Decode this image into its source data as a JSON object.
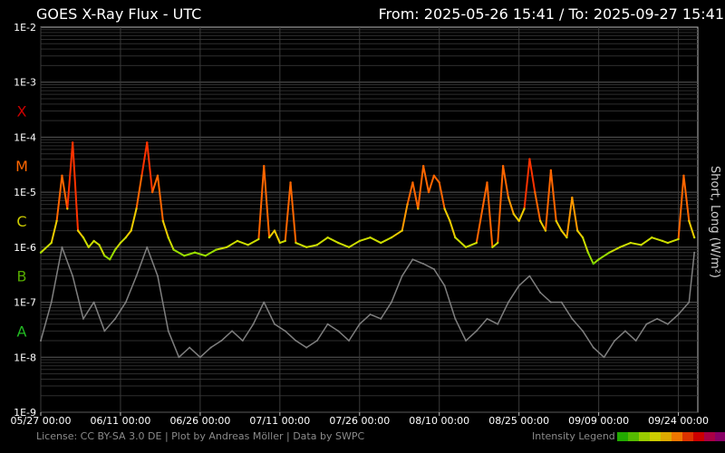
{
  "chart_data": {
    "type": "line",
    "title": "GOES X-Ray Flux - UTC",
    "range_label": "From: 2025-05-26 15:41  /  To: 2025-09-27 15:41",
    "ylabel": "Short, Long (W/m²)",
    "yscale": "log",
    "ylim": [
      1e-09,
      0.01
    ],
    "xlim": [
      "2025-05-27T00:00",
      "2025-09-27T15:41"
    ],
    "y_ticks": [
      "1E-2",
      "1E-3",
      "1E-4",
      "1E-5",
      "1E-6",
      "1E-7",
      "1E-8",
      "1E-9"
    ],
    "x_ticks": [
      {
        "date": "2025-05-27",
        "label": "05/27 00:00"
      },
      {
        "date": "2025-06-11",
        "label": "06/11 00:00"
      },
      {
        "date": "2025-06-26",
        "label": "06/26 00:00"
      },
      {
        "date": "2025-07-11",
        "label": "07/11 00:00"
      },
      {
        "date": "2025-07-26",
        "label": "07/26 00:00"
      },
      {
        "date": "2025-08-10",
        "label": "08/10 00:00"
      },
      {
        "date": "2025-08-25",
        "label": "08/25 00:00"
      },
      {
        "date": "2025-09-09",
        "label": "09/09 00:00"
      },
      {
        "date": "2025-09-24",
        "label": "09/24 00:00"
      }
    ],
    "flare_classes": [
      {
        "label": "X",
        "color": "#cc0000",
        "value": 0.0003
      },
      {
        "label": "M",
        "color": "#ff6600",
        "value": 3e-05
      },
      {
        "label": "C",
        "color": "#cccc00",
        "value": 3e-06
      },
      {
        "label": "B",
        "color": "#55aa00",
        "value": 3e-07
      },
      {
        "label": "A",
        "color": "#22bb22",
        "value": 3e-08
      }
    ],
    "grid": true,
    "series": [
      {
        "name": "Long",
        "color_scale": "intensity",
        "points": [
          [
            "2025-05-27",
            8e-07
          ],
          [
            "2025-05-29",
            1.2e-06
          ],
          [
            "2025-05-30",
            3e-06
          ],
          [
            "2025-05-31",
            2e-05
          ],
          [
            "2025-06-01",
            5e-06
          ],
          [
            "2025-06-02",
            8e-05
          ],
          [
            "2025-06-03",
            2e-06
          ],
          [
            "2025-06-04",
            1.5e-06
          ],
          [
            "2025-06-05",
            1e-06
          ],
          [
            "2025-06-06",
            1.3e-06
          ],
          [
            "2025-06-07",
            1.1e-06
          ],
          [
            "2025-06-08",
            7e-07
          ],
          [
            "2025-06-09",
            6e-07
          ],
          [
            "2025-06-10",
            9e-07
          ],
          [
            "2025-06-11",
            1.2e-06
          ],
          [
            "2025-06-12",
            1.5e-06
          ],
          [
            "2025-06-13",
            2e-06
          ],
          [
            "2025-06-14",
            5e-06
          ],
          [
            "2025-06-15",
            2e-05
          ],
          [
            "2025-06-16",
            8e-05
          ],
          [
            "2025-06-17",
            1e-05
          ],
          [
            "2025-06-18",
            2e-05
          ],
          [
            "2025-06-19",
            3e-06
          ],
          [
            "2025-06-20",
            1.5e-06
          ],
          [
            "2025-06-21",
            9e-07
          ],
          [
            "2025-06-23",
            7e-07
          ],
          [
            "2025-06-25",
            8e-07
          ],
          [
            "2025-06-27",
            7e-07
          ],
          [
            "2025-06-29",
            9e-07
          ],
          [
            "2025-07-01",
            1e-06
          ],
          [
            "2025-07-03",
            1.3e-06
          ],
          [
            "2025-07-05",
            1.1e-06
          ],
          [
            "2025-07-07",
            1.4e-06
          ],
          [
            "2025-07-08",
            3e-05
          ],
          [
            "2025-07-09",
            1.5e-06
          ],
          [
            "2025-07-10",
            2e-06
          ],
          [
            "2025-07-11",
            1.2e-06
          ],
          [
            "2025-07-12",
            1.3e-06
          ],
          [
            "2025-07-13",
            1.5e-05
          ],
          [
            "2025-07-14",
            1.2e-06
          ],
          [
            "2025-07-16",
            1e-06
          ],
          [
            "2025-07-18",
            1.1e-06
          ],
          [
            "2025-07-20",
            1.5e-06
          ],
          [
            "2025-07-22",
            1.2e-06
          ],
          [
            "2025-07-24",
            1e-06
          ],
          [
            "2025-07-26",
            1.3e-06
          ],
          [
            "2025-07-28",
            1.5e-06
          ],
          [
            "2025-07-30",
            1.2e-06
          ],
          [
            "2025-08-01",
            1.5e-06
          ],
          [
            "2025-08-03",
            2e-06
          ],
          [
            "2025-08-04",
            6e-06
          ],
          [
            "2025-08-05",
            1.5e-05
          ],
          [
            "2025-08-06",
            5e-06
          ],
          [
            "2025-08-07",
            3e-05
          ],
          [
            "2025-08-08",
            1e-05
          ],
          [
            "2025-08-09",
            2e-05
          ],
          [
            "2025-08-10",
            1.5e-05
          ],
          [
            "2025-08-11",
            5e-06
          ],
          [
            "2025-08-12",
            3e-06
          ],
          [
            "2025-08-13",
            1.5e-06
          ],
          [
            "2025-08-15",
            1e-06
          ],
          [
            "2025-08-17",
            1.2e-06
          ],
          [
            "2025-08-19",
            1.5e-05
          ],
          [
            "2025-08-20",
            1e-06
          ],
          [
            "2025-08-21",
            1.2e-06
          ],
          [
            "2025-08-22",
            3e-05
          ],
          [
            "2025-08-23",
            8e-06
          ],
          [
            "2025-08-24",
            4e-06
          ],
          [
            "2025-08-25",
            3e-06
          ],
          [
            "2025-08-26",
            5e-06
          ],
          [
            "2025-08-27",
            4e-05
          ],
          [
            "2025-08-28",
            1e-05
          ],
          [
            "2025-08-29",
            3e-06
          ],
          [
            "2025-08-30",
            2e-06
          ],
          [
            "2025-08-31",
            2.5e-05
          ],
          [
            "2025-09-01",
            3e-06
          ],
          [
            "2025-09-02",
            2e-06
          ],
          [
            "2025-09-03",
            1.5e-06
          ],
          [
            "2025-09-04",
            8e-06
          ],
          [
            "2025-09-05",
            2e-06
          ],
          [
            "2025-09-06",
            1.5e-06
          ],
          [
            "2025-09-07",
            8e-07
          ],
          [
            "2025-09-08",
            5e-07
          ],
          [
            "2025-09-09",
            6e-07
          ],
          [
            "2025-09-11",
            8e-07
          ],
          [
            "2025-09-13",
            1e-06
          ],
          [
            "2025-09-15",
            1.2e-06
          ],
          [
            "2025-09-17",
            1.1e-06
          ],
          [
            "2025-09-19",
            1.5e-06
          ],
          [
            "2025-09-21",
            1.3e-06
          ],
          [
            "2025-09-22",
            1.2e-06
          ],
          [
            "2025-09-24",
            1.4e-06
          ],
          [
            "2025-09-25",
            2e-05
          ],
          [
            "2025-09-26",
            3e-06
          ],
          [
            "2025-09-27",
            1.5e-06
          ]
        ]
      },
      {
        "name": "Short",
        "color": "#7f7f7f",
        "points": [
          [
            "2025-05-27",
            2e-08
          ],
          [
            "2025-05-29",
            1e-07
          ],
          [
            "2025-05-31",
            1e-06
          ],
          [
            "2025-06-02",
            3e-07
          ],
          [
            "2025-06-04",
            5e-08
          ],
          [
            "2025-06-06",
            1e-07
          ],
          [
            "2025-06-08",
            3e-08
          ],
          [
            "2025-06-10",
            5e-08
          ],
          [
            "2025-06-12",
            1e-07
          ],
          [
            "2025-06-14",
            3e-07
          ],
          [
            "2025-06-16",
            1e-06
          ],
          [
            "2025-06-18",
            3e-07
          ],
          [
            "2025-06-20",
            3e-08
          ],
          [
            "2025-06-22",
            1e-08
          ],
          [
            "2025-06-24",
            1.5e-08
          ],
          [
            "2025-06-26",
            1e-08
          ],
          [
            "2025-06-28",
            1.5e-08
          ],
          [
            "2025-06-30",
            2e-08
          ],
          [
            "2025-07-02",
            3e-08
          ],
          [
            "2025-07-04",
            2e-08
          ],
          [
            "2025-07-06",
            4e-08
          ],
          [
            "2025-07-08",
            1e-07
          ],
          [
            "2025-07-10",
            4e-08
          ],
          [
            "2025-07-12",
            3e-08
          ],
          [
            "2025-07-14",
            2e-08
          ],
          [
            "2025-07-16",
            1.5e-08
          ],
          [
            "2025-07-18",
            2e-08
          ],
          [
            "2025-07-20",
            4e-08
          ],
          [
            "2025-07-22",
            3e-08
          ],
          [
            "2025-07-24",
            2e-08
          ],
          [
            "2025-07-26",
            4e-08
          ],
          [
            "2025-07-28",
            6e-08
          ],
          [
            "2025-07-30",
            5e-08
          ],
          [
            "2025-08-01",
            1e-07
          ],
          [
            "2025-08-03",
            3e-07
          ],
          [
            "2025-08-05",
            6e-07
          ],
          [
            "2025-08-07",
            5e-07
          ],
          [
            "2025-08-09",
            4e-07
          ],
          [
            "2025-08-11",
            2e-07
          ],
          [
            "2025-08-13",
            5e-08
          ],
          [
            "2025-08-15",
            2e-08
          ],
          [
            "2025-08-17",
            3e-08
          ],
          [
            "2025-08-19",
            5e-08
          ],
          [
            "2025-08-21",
            4e-08
          ],
          [
            "2025-08-23",
            1e-07
          ],
          [
            "2025-08-25",
            2e-07
          ],
          [
            "2025-08-27",
            3e-07
          ],
          [
            "2025-08-29",
            1.5e-07
          ],
          [
            "2025-08-31",
            1e-07
          ],
          [
            "2025-09-02",
            1e-07
          ],
          [
            "2025-09-04",
            5e-08
          ],
          [
            "2025-09-06",
            3e-08
          ],
          [
            "2025-09-08",
            1.5e-08
          ],
          [
            "2025-09-10",
            1e-08
          ],
          [
            "2025-09-12",
            2e-08
          ],
          [
            "2025-09-14",
            3e-08
          ],
          [
            "2025-09-16",
            2e-08
          ],
          [
            "2025-09-18",
            4e-08
          ],
          [
            "2025-09-20",
            5e-08
          ],
          [
            "2025-09-22",
            4e-08
          ],
          [
            "2025-09-24",
            6e-08
          ],
          [
            "2025-09-26",
            1e-07
          ],
          [
            "2025-09-27",
            8e-07
          ]
        ]
      }
    ]
  },
  "footer": {
    "credits": "License: CC BY-SA 3.0 DE | Plot by Andreas Möller | Data by SWPC",
    "legend_label": "Intensity Legend",
    "legend_colors": [
      "#22aa00",
      "#55bb00",
      "#99cc00",
      "#cccc00",
      "#ddaa00",
      "#ee7700",
      "#dd3300",
      "#cc0000",
      "#aa0044",
      "#880066"
    ]
  }
}
